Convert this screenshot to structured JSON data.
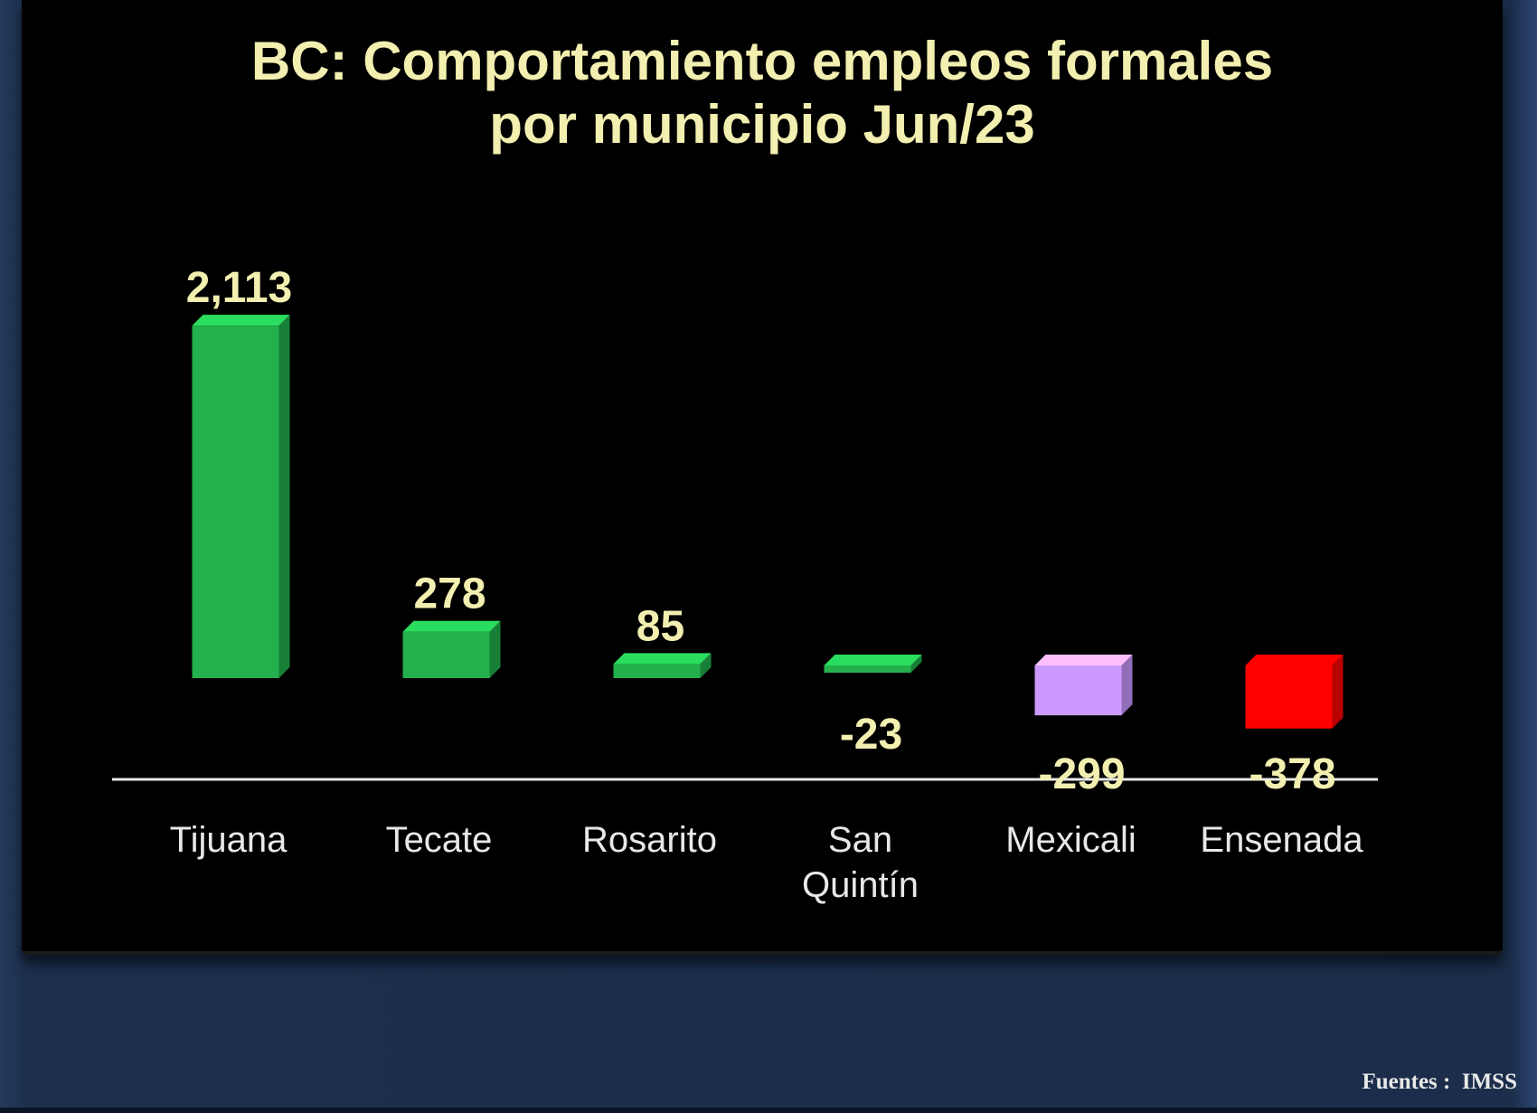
{
  "chart_data": {
    "type": "bar",
    "title_line1": "BC:  Comportamiento empleos formales",
    "title_line2": "por municipio  Jun/23",
    "categories": [
      [
        "Tijuana"
      ],
      [
        "Tecate"
      ],
      [
        "Rosarito"
      ],
      [
        "San",
        "Quintín"
      ],
      [
        "Mexicali"
      ],
      [
        "Ensenada"
      ]
    ],
    "values": [
      2113,
      278,
      85,
      -23,
      -299,
      -378
    ],
    "value_labels": [
      "2,113",
      "278",
      "85",
      "-23",
      "-299",
      "-378"
    ],
    "colors": [
      "#22b14c",
      "#22b14c",
      "#22b14c",
      "#22b14c",
      "#cc99ff",
      "#ff0000"
    ],
    "xlabel": "",
    "ylabel": ""
  },
  "source": "Fuentes :  IMSS"
}
